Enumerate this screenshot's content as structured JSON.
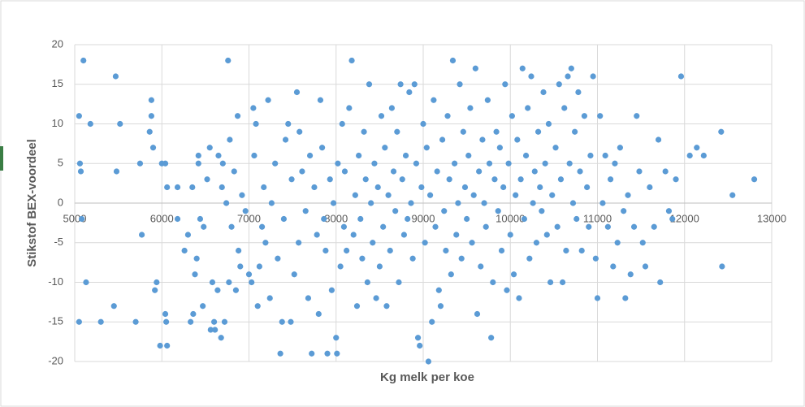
{
  "chart_data": {
    "type": "scatter",
    "x_label": "Kg melk per koe",
    "y_label": "Stikstof BEX-voordeel",
    "color": "#5b9bd5",
    "grid": true,
    "xlim": [
      5000,
      13000
    ],
    "ylim": [
      -20,
      20
    ],
    "xticks": [
      5000,
      6000,
      7000,
      8000,
      9000,
      10000,
      11000,
      12000,
      13000
    ],
    "yticks": [
      -20,
      -15,
      -10,
      -5,
      0,
      5,
      10,
      15,
      20
    ],
    "x": [
      5050,
      5050,
      5060,
      5070,
      5080,
      5100,
      5130,
      5180,
      5300,
      5450,
      5470,
      5480,
      5520,
      5700,
      5750,
      5770,
      5860,
      5880,
      5880,
      5900,
      5920,
      5940,
      5980,
      6000,
      6040,
      6040,
      6060,
      6050,
      6060,
      6180,
      6180,
      6260,
      6300,
      6330,
      6350,
      6360,
      6380,
      6400,
      6420,
      6420,
      6440,
      6470,
      6480,
      6520,
      6550,
      6560,
      6580,
      6600,
      6610,
      6640,
      6650,
      6680,
      6690,
      6700,
      6720,
      6740,
      6760,
      6770,
      6780,
      6800,
      6830,
      6850,
      6870,
      6880,
      6900,
      6920,
      6960,
      7000,
      7030,
      7050,
      7060,
      7080,
      7100,
      7120,
      7150,
      7170,
      7190,
      7220,
      7240,
      7260,
      7300,
      7330,
      7360,
      7380,
      7400,
      7420,
      7450,
      7480,
      7490,
      7520,
      7550,
      7570,
      7580,
      7610,
      7650,
      7680,
      7700,
      7720,
      7750,
      7780,
      7800,
      7820,
      7840,
      7860,
      7880,
      7900,
      7930,
      7950,
      7970,
      8000,
      8010,
      8020,
      8050,
      8070,
      8090,
      8100,
      8120,
      8150,
      8180,
      8200,
      8220,
      8240,
      8260,
      8280,
      8300,
      8320,
      8340,
      8360,
      8380,
      8400,
      8420,
      8440,
      8460,
      8480,
      8500,
      8520,
      8540,
      8560,
      8580,
      8600,
      8620,
      8640,
      8660,
      8680,
      8700,
      8720,
      8740,
      8760,
      8780,
      8800,
      8820,
      8840,
      8860,
      8880,
      8900,
      8920,
      8940,
      8960,
      8980,
      9000,
      9020,
      9040,
      9060,
      9080,
      9100,
      9120,
      9140,
      9160,
      9180,
      9200,
      9220,
      9240,
      9260,
      9280,
      9300,
      9320,
      9340,
      9360,
      9380,
      9400,
      9420,
      9440,
      9460,
      9480,
      9500,
      9520,
      9540,
      9560,
      9580,
      9600,
      9620,
      9640,
      9660,
      9680,
      9700,
      9720,
      9740,
      9760,
      9780,
      9800,
      9820,
      9840,
      9860,
      9880,
      9900,
      9920,
      9940,
      9960,
      9980,
      10000,
      10020,
      10040,
      10060,
      10080,
      10100,
      10120,
      10140,
      10160,
      10180,
      10200,
      10220,
      10240,
      10260,
      10280,
      10300,
      10320,
      10340,
      10360,
      10380,
      10400,
      10420,
      10440,
      10460,
      10480,
      10520,
      10540,
      10560,
      10580,
      10600,
      10620,
      10640,
      10660,
      10680,
      10700,
      10720,
      10740,
      10760,
      10780,
      10800,
      10820,
      10850,
      10880,
      10900,
      10920,
      10950,
      10980,
      11000,
      11030,
      11060,
      11090,
      11120,
      11150,
      11180,
      11200,
      11230,
      11260,
      11300,
      11320,
      11350,
      11380,
      11420,
      11450,
      11480,
      11520,
      11550,
      11600,
      11650,
      11700,
      11720,
      11780,
      11820,
      11860,
      11900,
      11960,
      12060,
      12140,
      12220,
      12420,
      12430,
      12550,
      12800
    ],
    "y": [
      -15,
      11,
      5,
      4,
      -2,
      18,
      -10,
      10,
      -15,
      -13,
      16,
      4,
      10,
      -15,
      5,
      -4,
      9,
      11,
      13,
      7,
      -11,
      -10,
      -18,
      5,
      5,
      -14,
      -18,
      -15,
      2,
      -2,
      2,
      -6,
      -4,
      -15,
      2,
      -14,
      -9,
      -7,
      5,
      6,
      -2,
      -13,
      -3,
      3,
      7,
      -16,
      -10,
      -15,
      -16,
      -11,
      6,
      -17,
      2,
      5,
      -15,
      0,
      18,
      -10,
      8,
      -3,
      4,
      -11,
      11,
      -6,
      -8,
      1,
      -1,
      -9,
      -10,
      12,
      6,
      10,
      -13,
      -8,
      -3,
      2,
      -5,
      13,
      -12,
      0,
      5,
      -7,
      -19,
      -15,
      -2,
      8,
      10,
      -15,
      3,
      -9,
      14,
      -5,
      9,
      4,
      -1,
      -12,
      6,
      -19,
      2,
      -4,
      -14,
      13,
      7,
      -2,
      -6,
      -19,
      3,
      -11,
      0,
      -17,
      -19,
      5,
      -8,
      10,
      -3,
      4,
      -6,
      12,
      18,
      -4,
      1,
      -13,
      6,
      -2,
      -7,
      9,
      3,
      -10,
      15,
      0,
      -5,
      5,
      -12,
      2,
      -8,
      11,
      -3,
      7,
      -13,
      1,
      -6,
      12,
      4,
      -1,
      9,
      -10,
      15,
      3,
      -4,
      6,
      -2,
      14,
      0,
      -7,
      15,
      5,
      -17,
      -18,
      2,
      10,
      -5,
      7,
      -20,
      1,
      -15,
      13,
      -3,
      4,
      -11,
      -13,
      8,
      -1,
      -6,
      11,
      3,
      -9,
      18,
      5,
      -4,
      0,
      15,
      -7,
      9,
      2,
      -2,
      6,
      12,
      -5,
      1,
      17,
      -14,
      4,
      -8,
      8,
      0,
      -3,
      13,
      5,
      -17,
      -10,
      3,
      9,
      -1,
      7,
      -6,
      2,
      15,
      -11,
      5,
      -4,
      11,
      -9,
      1,
      8,
      -12,
      3,
      17,
      -2,
      6,
      12,
      -7,
      16,
      0,
      4,
      -5,
      9,
      2,
      -1,
      14,
      5,
      -4,
      10,
      -10,
      1,
      7,
      -3,
      15,
      3,
      -10,
      12,
      -6,
      16,
      5,
      17,
      0,
      9,
      -2,
      14,
      4,
      -6,
      11,
      2,
      -3,
      6,
      16,
      -7,
      -12,
      11,
      0,
      6,
      -3,
      3,
      -8,
      5,
      -5,
      7,
      -1,
      -12,
      1,
      -9,
      -3,
      11,
      4,
      -5,
      -8,
      2,
      -3,
      8,
      -10,
      4,
      -1,
      -2,
      3,
      16,
      6,
      7,
      6,
      9,
      -8,
      1,
      3
    ]
  }
}
